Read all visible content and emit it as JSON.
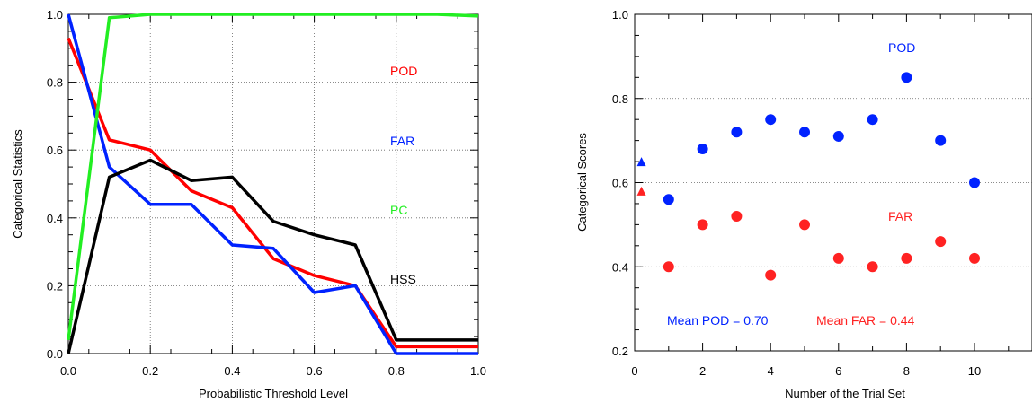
{
  "chart_data": [
    {
      "type": "line",
      "xlabel": "Probabilistic Threshold Level",
      "ylabel": "Categorical Statistics",
      "xlim": [
        0,
        1
      ],
      "ylim": [
        0,
        1
      ],
      "xticks": [
        "0.0",
        "0.2",
        "0.4",
        "0.6",
        "0.8",
        "1.0"
      ],
      "yticks": [
        "0.0",
        "0.2",
        "0.4",
        "0.6",
        "0.8",
        "1.0"
      ],
      "grid": "dotted",
      "x": [
        0,
        0.1,
        0.2,
        0.3,
        0.4,
        0.5,
        0.6,
        0.7,
        0.8,
        0.9,
        1.0
      ],
      "series": [
        {
          "name": "POD",
          "color": "#ff0000",
          "values": [
            0.93,
            0.63,
            0.6,
            0.48,
            0.43,
            0.28,
            0.23,
            0.2,
            0.02,
            0.02,
            0.02
          ]
        },
        {
          "name": "FAR",
          "color": "#0022ff",
          "values": [
            1.0,
            0.55,
            0.44,
            0.44,
            0.32,
            0.31,
            0.18,
            0.2,
            0.0,
            0.0,
            0.0
          ]
        },
        {
          "name": "PC",
          "color": "#22ee22",
          "values": [
            0.04,
            0.99,
            1.0,
            1.0,
            1.0,
            1.0,
            1.0,
            1.0,
            1.0,
            1.0,
            0.995
          ]
        },
        {
          "name": "HSS",
          "color": "#000000",
          "values": [
            0.0,
            0.52,
            0.57,
            0.51,
            0.52,
            0.39,
            0.35,
            0.32,
            0.04,
            0.04,
            0.04
          ]
        }
      ],
      "labels": [
        {
          "text": "POD",
          "color": "#ff0000"
        },
        {
          "text": "FAR",
          "color": "#0022ff"
        },
        {
          "text": "PC",
          "color": "#22ee22"
        },
        {
          "text": "HSS",
          "color": "#000000"
        }
      ]
    },
    {
      "type": "scatter",
      "xlabel": "Number of the Trial Set",
      "ylabel": "Categorical Scores",
      "xlim": [
        0,
        11
      ],
      "ylim": [
        0.2,
        1.0
      ],
      "xticks": [
        "0",
        "2",
        "4",
        "6",
        "8",
        "10"
      ],
      "yticks": [
        "0.2",
        "0.4",
        "0.6",
        "0.8",
        "1.0"
      ],
      "grid": "dotted",
      "x": [
        1,
        2,
        3,
        4,
        5,
        6,
        7,
        8,
        9,
        10
      ],
      "series": [
        {
          "name": "POD",
          "color": "#0022ff",
          "values": [
            0.56,
            0.68,
            0.72,
            0.75,
            0.72,
            0.71,
            0.75,
            0.85,
            0.7,
            0.6
          ]
        },
        {
          "name": "FAR",
          "color": "#ff2222",
          "values": [
            0.4,
            0.5,
            0.52,
            0.38,
            0.5,
            0.42,
            0.4,
            0.42,
            0.46,
            0.42
          ]
        }
      ],
      "mean_markers": [
        {
          "x": 0.2,
          "y": 0.65,
          "color": "#0022ff"
        },
        {
          "x": 0.2,
          "y": 0.58,
          "color": "#ff2222"
        }
      ],
      "labels": [
        {
          "text": "POD",
          "color": "#0022ff"
        },
        {
          "text": "FAR",
          "color": "#ff2222"
        }
      ],
      "annotations": [
        {
          "text": "Mean POD = 0.70",
          "color": "#0022ff"
        },
        {
          "text": "Mean FAR = 0.44",
          "color": "#ff2222"
        }
      ]
    }
  ]
}
